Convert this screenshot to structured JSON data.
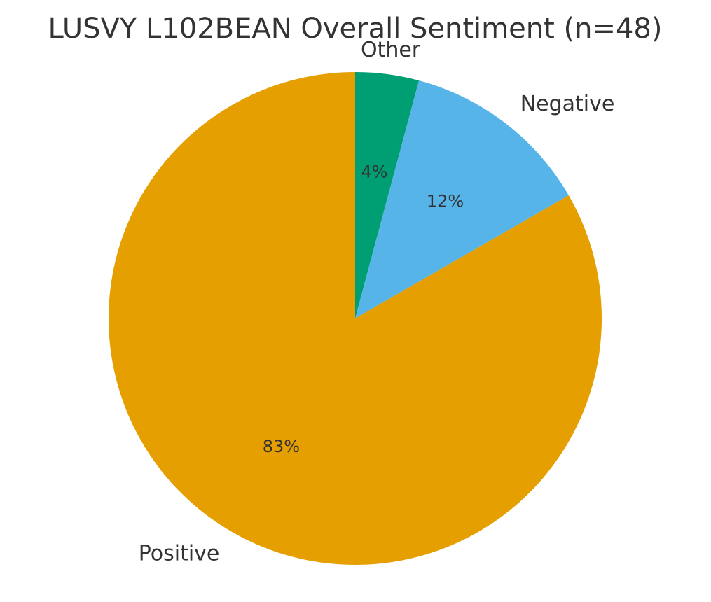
{
  "chart_data": {
    "type": "pie",
    "title": "LUSVY L102BEAN Overall Sentiment (n=48)",
    "slices": [
      {
        "label": "Other",
        "value": 2,
        "pct_label": "4%",
        "color": "#009E73"
      },
      {
        "label": "Negative",
        "value": 6,
        "pct_label": "12%",
        "color": "#56B4E9"
      },
      {
        "label": "Positive",
        "value": 40,
        "pct_label": "83%",
        "color": "#E69F00"
      }
    ],
    "start": "top",
    "direction": "clockwise",
    "legend": "none"
  }
}
